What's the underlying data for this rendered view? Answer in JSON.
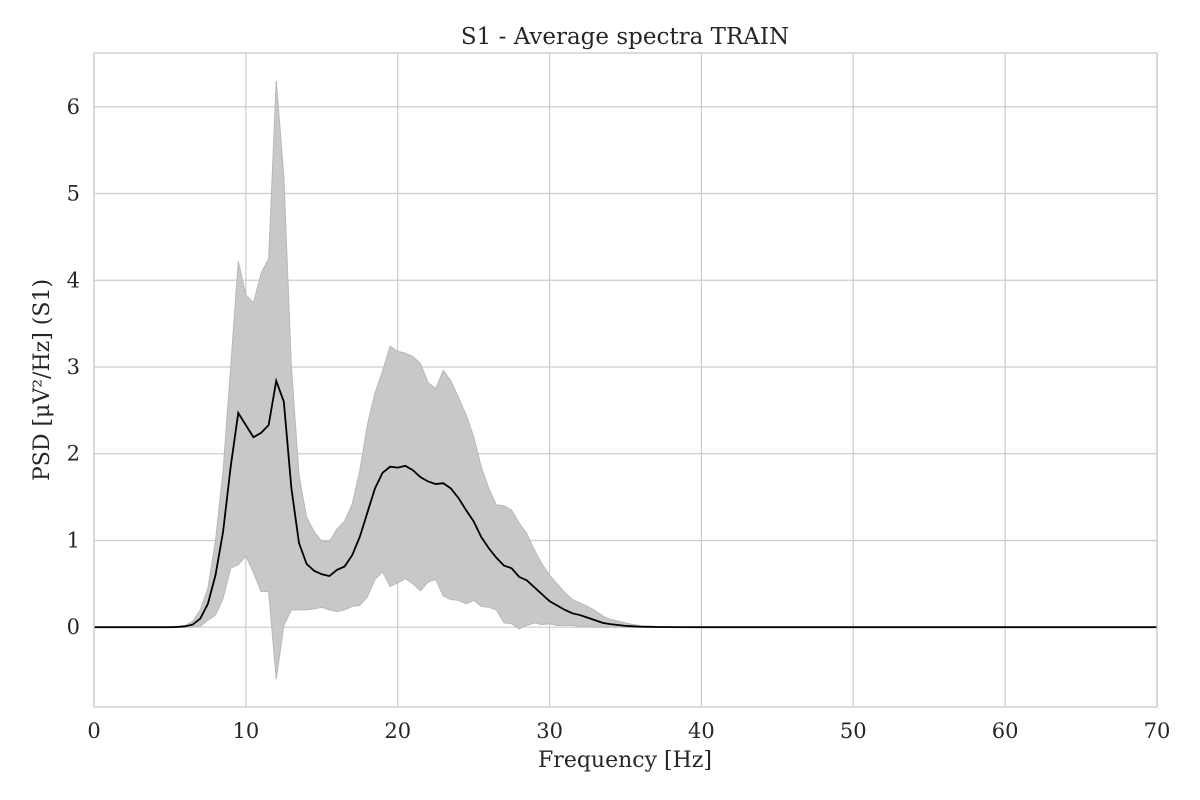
{
  "chart_data": {
    "type": "line",
    "title": "S1 - Average spectra TRAIN",
    "xlabel": "Frequency [Hz]",
    "ylabel": "PSD [μV²/Hz] (S1)",
    "xlim": [
      0,
      70
    ],
    "ylim": [
      -0.92,
      6.62
    ],
    "xticks": [
      0,
      10,
      20,
      30,
      40,
      50,
      60,
      70
    ],
    "yticks": [
      0,
      1,
      2,
      3,
      4,
      5,
      6
    ],
    "grid": true,
    "colors": {
      "mean_line": "#000000",
      "band_fill": "#c8c8c8",
      "grid": "#cccccc"
    },
    "series": [
      {
        "role": "mean",
        "x": [
          0,
          1,
          2,
          3,
          4,
          5,
          5.5,
          6,
          6.5,
          7,
          7.5,
          8,
          8.5,
          9,
          9.5,
          10,
          10.5,
          11,
          11.5,
          12,
          12.5,
          13,
          13.5,
          14,
          14.5,
          15,
          15.5,
          16,
          16.5,
          17,
          17.5,
          18,
          18.5,
          19,
          19.5,
          20,
          20.5,
          21,
          21.5,
          22,
          22.5,
          23,
          23.5,
          24,
          24.5,
          25,
          25.5,
          26,
          26.5,
          27,
          27.5,
          28,
          28.5,
          29,
          29.5,
          30,
          30.5,
          31,
          31.5,
          32,
          32.5,
          33,
          33.5,
          34,
          34.5,
          35,
          35.5,
          36,
          37,
          38,
          40,
          45,
          50,
          60,
          70
        ],
        "y": [
          0,
          0,
          0,
          0,
          0,
          0,
          0.003,
          0.01,
          0.03,
          0.1,
          0.27,
          0.6,
          1.1,
          1.85,
          2.47,
          2.33,
          2.19,
          2.24,
          2.33,
          2.84,
          2.6,
          1.6,
          0.97,
          0.73,
          0.65,
          0.61,
          0.59,
          0.66,
          0.7,
          0.83,
          1.04,
          1.32,
          1.6,
          1.78,
          1.85,
          1.84,
          1.86,
          1.81,
          1.73,
          1.68,
          1.65,
          1.66,
          1.6,
          1.49,
          1.35,
          1.22,
          1.04,
          0.91,
          0.8,
          0.71,
          0.68,
          0.58,
          0.54,
          0.46,
          0.38,
          0.3,
          0.25,
          0.2,
          0.16,
          0.14,
          0.11,
          0.08,
          0.05,
          0.035,
          0.025,
          0.015,
          0.01,
          0.005,
          0.002,
          0.001,
          0,
          0,
          0,
          0,
          0
        ]
      },
      {
        "role": "upper",
        "x": [
          0,
          1,
          2,
          3,
          4,
          5,
          5.5,
          6,
          6.5,
          7,
          7.5,
          8,
          8.5,
          9,
          9.5,
          10,
          10.5,
          11,
          11.5,
          12,
          12.5,
          13,
          13.5,
          14,
          14.5,
          15,
          15.5,
          16,
          16.5,
          17,
          17.5,
          18,
          18.5,
          19,
          19.5,
          20,
          20.5,
          21,
          21.5,
          22,
          22.5,
          23,
          23.5,
          24,
          24.5,
          25,
          25.5,
          26,
          26.5,
          27,
          27.5,
          28,
          28.5,
          29,
          29.5,
          30,
          30.5,
          31,
          31.5,
          32,
          32.5,
          33,
          33.5,
          34,
          34.5,
          35,
          35.5,
          36,
          37,
          38,
          40,
          45,
          50,
          60,
          70
        ],
        "y": [
          0,
          0,
          0,
          0,
          0,
          0,
          0.005,
          0.02,
          0.07,
          0.2,
          0.45,
          1.0,
          1.8,
          3.0,
          4.22,
          3.83,
          3.74,
          4.08,
          4.25,
          6.3,
          5.2,
          3.0,
          1.75,
          1.27,
          1.1,
          0.99,
          0.99,
          1.13,
          1.22,
          1.42,
          1.8,
          2.33,
          2.7,
          2.95,
          3.24,
          3.18,
          3.16,
          3.12,
          3.04,
          2.82,
          2.75,
          2.96,
          2.84,
          2.65,
          2.45,
          2.2,
          1.85,
          1.6,
          1.41,
          1.4,
          1.35,
          1.2,
          1.08,
          0.89,
          0.73,
          0.6,
          0.5,
          0.4,
          0.32,
          0.28,
          0.24,
          0.19,
          0.13,
          0.09,
          0.07,
          0.05,
          0.03,
          0.02,
          0.01,
          0.005,
          0,
          0,
          0,
          0,
          0
        ]
      },
      {
        "role": "lower",
        "x": [
          0,
          1,
          2,
          3,
          4,
          5,
          5.5,
          6,
          6.5,
          7,
          7.5,
          8,
          8.5,
          9,
          9.5,
          10,
          10.5,
          11,
          11.5,
          12,
          12.5,
          13,
          13.5,
          14,
          14.5,
          15,
          15.5,
          16,
          16.5,
          17,
          17.5,
          18,
          18.5,
          19,
          19.5,
          20,
          20.5,
          21,
          21.5,
          22,
          22.5,
          23,
          23.5,
          24,
          24.5,
          25,
          25.5,
          26,
          26.5,
          27,
          27.5,
          28,
          28.5,
          29,
          29.5,
          30,
          30.5,
          31,
          31.5,
          32,
          32.5,
          33,
          33.5,
          34,
          34.5,
          35,
          35.5,
          36,
          37,
          38,
          40,
          45,
          50,
          60,
          70
        ],
        "y": [
          0,
          0,
          0,
          0,
          0,
          0,
          0,
          0,
          0,
          0.01,
          0.08,
          0.14,
          0.33,
          0.68,
          0.72,
          0.82,
          0.63,
          0.41,
          0.41,
          -0.6,
          0.02,
          0.2,
          0.2,
          0.2,
          0.21,
          0.23,
          0.2,
          0.18,
          0.2,
          0.24,
          0.25,
          0.35,
          0.55,
          0.64,
          0.47,
          0.51,
          0.56,
          0.5,
          0.42,
          0.52,
          0.55,
          0.36,
          0.32,
          0.31,
          0.27,
          0.31,
          0.24,
          0.23,
          0.2,
          0.05,
          0.04,
          -0.02,
          0.02,
          0.05,
          0.03,
          0.04,
          0.02,
          0.02,
          0.02,
          0.01,
          0.01,
          0,
          0,
          0,
          0,
          0,
          0,
          0,
          0,
          0,
          0,
          0,
          0,
          0,
          0
        ]
      }
    ]
  }
}
